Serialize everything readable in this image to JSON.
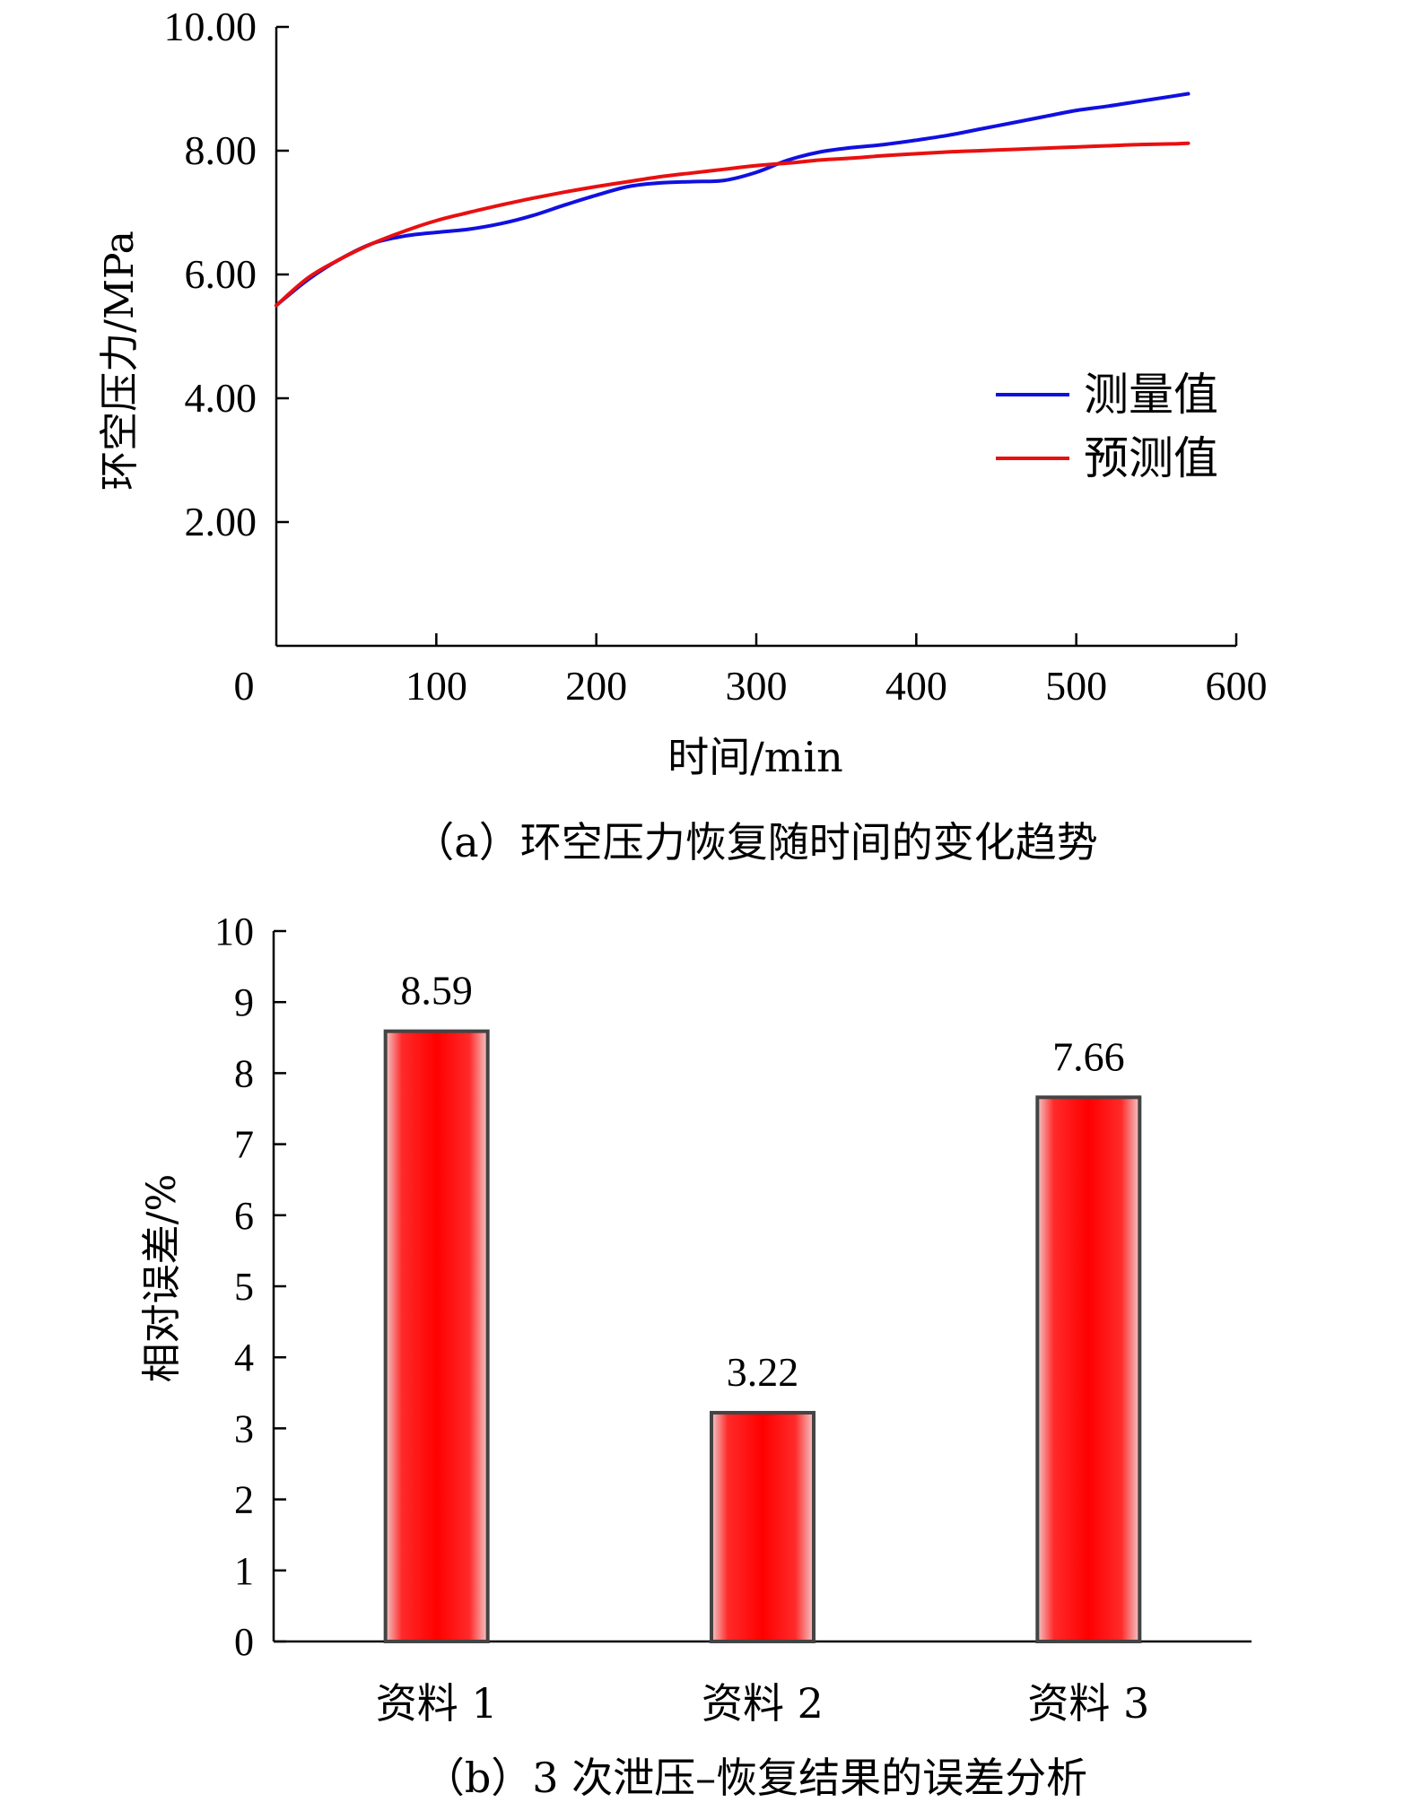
{
  "chart_data": [
    {
      "type": "line",
      "ylabel": "环空压力/MPa",
      "xlabel": "时间/min",
      "caption": "（a）环空压力恢复随时间的变化趋势",
      "xlim": [
        0,
        600
      ],
      "ylim": [
        0,
        10
      ],
      "x_ticks": [
        "0",
        "100",
        "200",
        "300",
        "400",
        "500",
        "600"
      ],
      "y_ticks": [
        "2.00",
        "4.00",
        "6.00",
        "8.00",
        "10.00"
      ],
      "legend_position": "right, middle",
      "series": [
        {
          "name": "测量值",
          "color": "#1010e0",
          "x": [
            0,
            20,
            40,
            60,
            80,
            100,
            120,
            140,
            160,
            180,
            200,
            220,
            240,
            260,
            280,
            300,
            320,
            340,
            360,
            380,
            400,
            420,
            440,
            460,
            480,
            500,
            520,
            540,
            560,
            570
          ],
          "y": [
            5.5,
            5.92,
            6.25,
            6.5,
            6.62,
            6.68,
            6.73,
            6.82,
            6.95,
            7.12,
            7.28,
            7.42,
            7.48,
            7.5,
            7.52,
            7.65,
            7.85,
            7.98,
            8.05,
            8.1,
            8.17,
            8.25,
            8.35,
            8.45,
            8.55,
            8.65,
            8.72,
            8.8,
            8.88,
            8.92
          ]
        },
        {
          "name": "预测值",
          "color": "#e81010",
          "x": [
            0,
            20,
            40,
            60,
            80,
            100,
            120,
            140,
            160,
            180,
            200,
            220,
            240,
            260,
            280,
            300,
            320,
            340,
            360,
            380,
            400,
            420,
            440,
            460,
            480,
            500,
            520,
            540,
            560,
            570
          ],
          "y": [
            5.5,
            5.95,
            6.25,
            6.5,
            6.7,
            6.87,
            7.0,
            7.12,
            7.23,
            7.33,
            7.42,
            7.5,
            7.58,
            7.64,
            7.7,
            7.76,
            7.8,
            7.85,
            7.88,
            7.92,
            7.95,
            7.98,
            8.0,
            8.02,
            8.04,
            8.06,
            8.08,
            8.1,
            8.11,
            8.12
          ]
        }
      ]
    },
    {
      "type": "bar",
      "ylabel": "相对误差/%",
      "caption": "（b）3 次泄压–恢复结果的误差分析",
      "ylim": [
        0,
        10
      ],
      "y_ticks": [
        "0",
        "1",
        "2",
        "3",
        "4",
        "5",
        "6",
        "7",
        "8",
        "9",
        "10"
      ],
      "categories": [
        "资料 1",
        "资料 2",
        "资料 3"
      ],
      "values": [
        8.59,
        3.22,
        7.66
      ],
      "value_labels": [
        "8.59",
        "3.22",
        "7.66"
      ],
      "bar_color": "#ff0000"
    }
  ]
}
